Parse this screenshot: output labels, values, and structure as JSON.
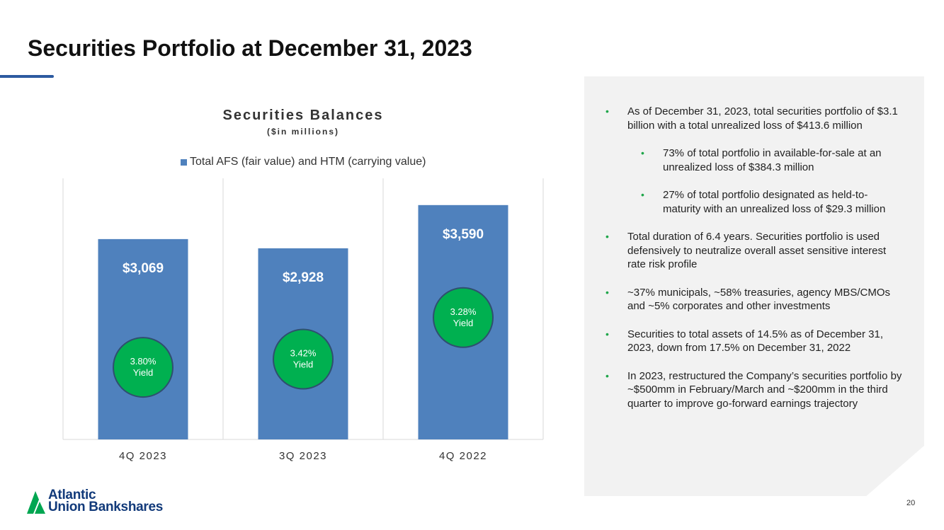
{
  "page": {
    "title": "Securities Portfolio at December 31, 2023",
    "page_number": "20"
  },
  "colors": {
    "bar": "#4f81bd",
    "yield_circle": "#00b050",
    "yield_border": "#2f4f6f",
    "accent_bullet": "#1fa64a",
    "title_rule": "#2c5aa0",
    "brand_navy": "#123a7a",
    "brand_green": "#00a651"
  },
  "chart_data": {
    "type": "bar",
    "title": "Securities Balances",
    "subtitle": "($in millions)",
    "legend": "Total AFS (fair value) and HTM (carrying value)",
    "categories": [
      "4Q 2023",
      "3Q 2023",
      "4Q 2022"
    ],
    "values": [
      3069,
      2928,
      3590
    ],
    "value_labels": [
      "$3,069",
      "$2,928",
      "$3,590"
    ],
    "yield_lines": [
      {
        "rate": "3.80%",
        "label": "Yield"
      },
      {
        "rate": "3.42%",
        "label": "Yield"
      },
      {
        "rate": "3.28%",
        "label": "Yield"
      }
    ],
    "ylim": [
      0,
      4000
    ],
    "grid": false,
    "legend_position": "top"
  },
  "bullets": [
    {
      "text": "As of December 31, 2023, total securities portfolio of $3.1 billion with a total unrealized loss of $413.6 million",
      "level": 1
    },
    {
      "text": "73% of total portfolio in available-for-sale at an unrealized loss of $384.3 million",
      "level": 2
    },
    {
      "text": "27% of total portfolio designated as held-to-maturity with an unrealized loss of $29.3 million",
      "level": 2
    },
    {
      "text": "Total duration of 6.4 years. Securities portfolio is used defensively to neutralize overall asset sensitive interest rate risk profile",
      "level": 1
    },
    {
      "text": "~37% municipals, ~58% treasuries, agency MBS/CMOs and ~5% corporates and other investments",
      "level": 1
    },
    {
      "text": "Securities to total assets of 14.5% as of December 31, 2023, down from 17.5% on December 31, 2022",
      "level": 1
    },
    {
      "text": "In 2023, restructured the Company’s securities portfolio by ~$500mm in February/March and ~$200mm in the third quarter to improve go-forward earnings trajectory",
      "level": 1
    }
  ],
  "logo": {
    "line1": "Atlantic",
    "line2": "Union Bankshares",
    "icon": "triangle-logo-icon"
  }
}
